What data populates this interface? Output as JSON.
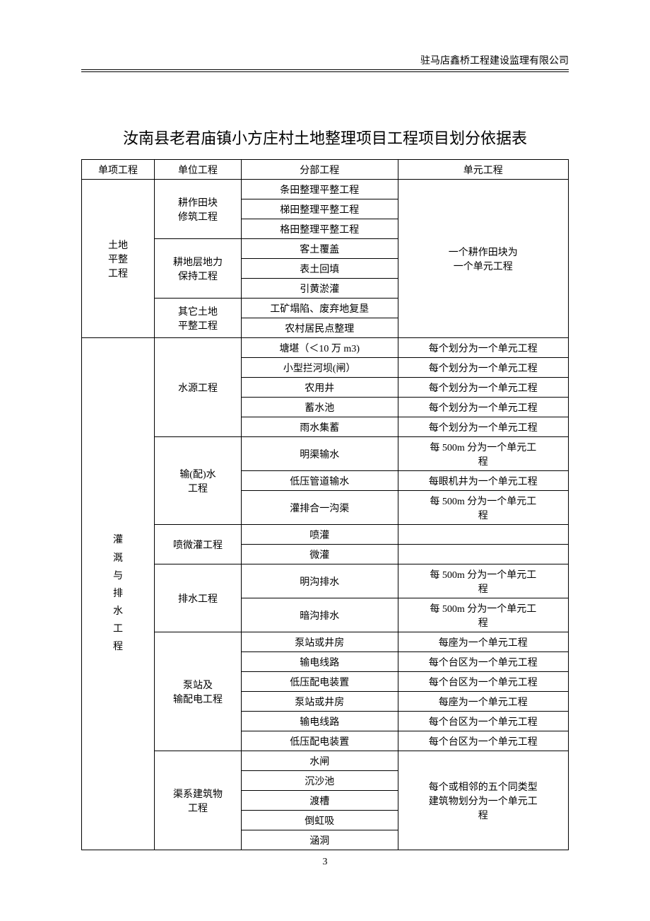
{
  "header": {
    "company": "驻马店鑫桥工程建设监理有限公司"
  },
  "title": "汝南县老君庙镇小方庄村土地整理项目工程项目划分依据表",
  "page_number": "3",
  "table": {
    "headers": {
      "col1": "单项工程",
      "col2": "单位工程",
      "col3": "分部工程",
      "col4": "单元工程"
    },
    "section1": {
      "name": "土地\n平整\n工程",
      "units": {
        "unit1": {
          "name": "耕作田块\n修筑工程",
          "parts": [
            "条田整理平整工程",
            "梯田整理平整工程",
            "格田整理平整工程"
          ]
        },
        "unit2": {
          "name": "耕地层地力\n保持工程",
          "parts": [
            "客土覆盖",
            "表土回填",
            "引黄淤灌"
          ]
        },
        "unit3": {
          "name": "其它土地\n平整工程",
          "parts": [
            "工矿塌陷、废弃地复垦",
            "农村居民点整理"
          ]
        }
      },
      "element": "一个耕作田块为\n一个单元工程"
    },
    "section2": {
      "name": "灌\n溉\n与\n排\n水\n工\n程",
      "units": {
        "unit1": {
          "name": "水源工程",
          "parts": [
            {
              "name": "塘堪（＜10 万 m3)",
              "element": "每个划分为一个单元工程"
            },
            {
              "name": "小型拦河坝(闸）",
              "element": "每个划分为一个单元工程"
            },
            {
              "name": "农用井",
              "element": "每个划分为一个单元工程"
            },
            {
              "name": "蓄水池",
              "element": "每个划分为一个单元工程"
            },
            {
              "name": "雨水集蓄",
              "element": "每个划分为一个单元工程"
            }
          ]
        },
        "unit2": {
          "name": "输(配)水\n工程",
          "parts": [
            {
              "name": "明渠输水",
              "element": "每 500m 分为一个单元工\n程"
            },
            {
              "name": "低压管道输水",
              "element": "每眼机井为一个单元工程"
            },
            {
              "name": "灌排合一沟渠",
              "element": "每 500m 分为一个单元工\n程"
            }
          ]
        },
        "unit3": {
          "name": "喷微灌工程",
          "parts": [
            {
              "name": "喷灌",
              "element": ""
            },
            {
              "name": "微灌",
              "element": ""
            }
          ]
        },
        "unit4": {
          "name": "排水工程",
          "parts": [
            {
              "name": "明沟排水",
              "element": "每 500m 分为一个单元工\n程"
            },
            {
              "name": "暗沟排水",
              "element": "每 500m 分为一个单元工\n程"
            }
          ]
        },
        "unit5": {
          "name": "泵站及\n输配电工程",
          "parts": [
            {
              "name": "泵站或井房",
              "element": "每座为一个单元工程"
            },
            {
              "name": "输电线路",
              "element": "每个台区为一个单元工程"
            },
            {
              "name": "低压配电装置",
              "element": "每个台区为一个单元工程"
            },
            {
              "name": "泵站或井房",
              "element": "每座为一个单元工程"
            },
            {
              "name": "输电线路",
              "element": "每个台区为一个单元工程"
            },
            {
              "name": "低压配电装置",
              "element": "每个台区为一个单元工程"
            }
          ]
        },
        "unit6": {
          "name": "渠系建筑物\n工程",
          "parts": [
            "水闸",
            "沉沙池",
            "渡槽",
            "倒虹吸",
            "涵洞"
          ],
          "element": "每个或相邻的五个同类型\n建筑物划分为一个单元工\n程"
        }
      }
    }
  }
}
